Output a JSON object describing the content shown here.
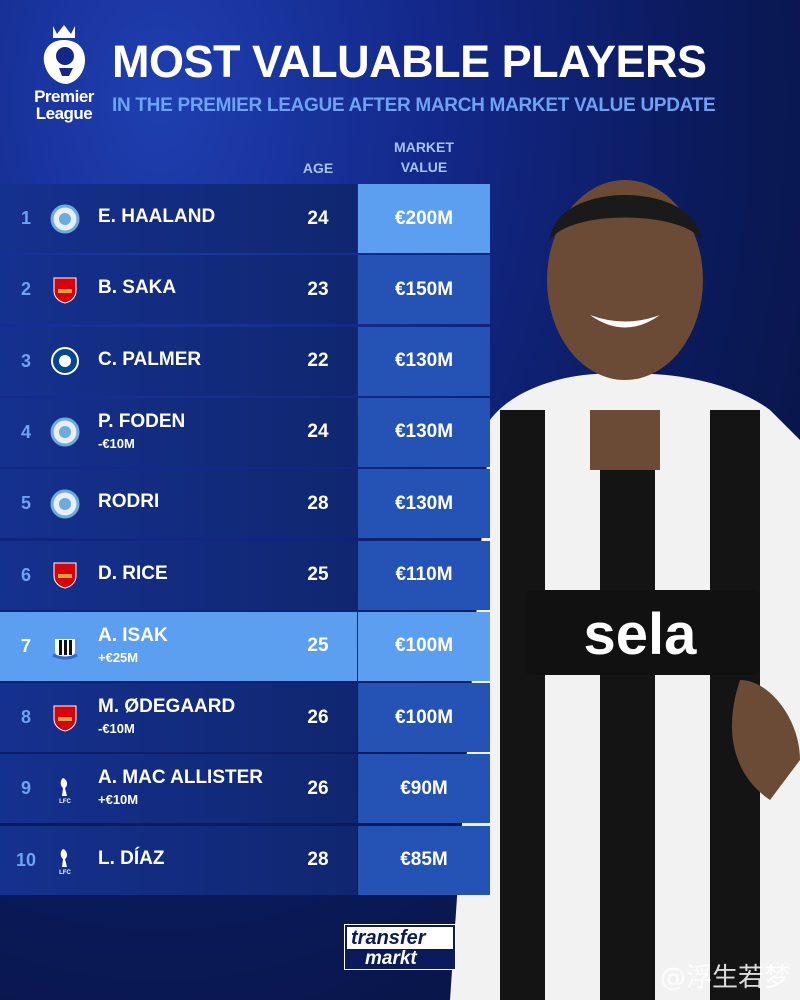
{
  "header": {
    "logo_text": [
      "Premier",
      "League"
    ],
    "title": "MOST VALUABLE PLAYERS",
    "subtitle": "IN THE PREMIER LEAGUE AFTER MARCH MARKET VALUE UPDATE"
  },
  "columns": {
    "age": "AGE",
    "market_value": [
      "MARKET",
      "VALUE"
    ]
  },
  "rows": [
    {
      "rank": "1",
      "club": "Manchester City",
      "crest": "man-city-crest",
      "name": "E. HAALAND",
      "change": "",
      "age": "24",
      "value": "€200M"
    },
    {
      "rank": "2",
      "club": "Arsenal",
      "crest": "arsenal-crest",
      "name": "B. SAKA",
      "change": "",
      "age": "23",
      "value": "€150M"
    },
    {
      "rank": "3",
      "club": "Chelsea",
      "crest": "chelsea-crest",
      "name": "C. PALMER",
      "change": "",
      "age": "22",
      "value": "€130M"
    },
    {
      "rank": "4",
      "club": "Manchester City",
      "crest": "man-city-crest",
      "name": "P. FODEN",
      "change": "-€10M",
      "age": "24",
      "value": "€130M"
    },
    {
      "rank": "5",
      "club": "Manchester City",
      "crest": "man-city-crest",
      "name": "RODRI",
      "change": "",
      "age": "28",
      "value": "€130M"
    },
    {
      "rank": "6",
      "club": "Arsenal",
      "crest": "arsenal-crest",
      "name": "D. RICE",
      "change": "",
      "age": "25",
      "value": "€110M"
    },
    {
      "rank": "7",
      "club": "Newcastle",
      "crest": "newcastle-crest",
      "name": "A. ISAK",
      "change": "+€25M",
      "age": "25",
      "value": "€100M",
      "highlight": true
    },
    {
      "rank": "8",
      "club": "Arsenal",
      "crest": "arsenal-crest",
      "name": "M. ØDEGAARD",
      "change": "-€10M",
      "age": "26",
      "value": "€100M"
    },
    {
      "rank": "9",
      "club": "Liverpool",
      "crest": "liverpool-crest",
      "name": "A. MAC ALLISTER",
      "change": "+€10M",
      "age": "26",
      "value": "€90M"
    },
    {
      "rank": "10",
      "club": "Liverpool",
      "crest": "liverpool-crest",
      "name": "L. DÍAZ",
      "change": "",
      "age": "28",
      "value": "€85M"
    }
  ],
  "jersey_sponsor": "sela",
  "brand_logo": [
    "transfer",
    "markt"
  ],
  "watermark": "@浮生若梦",
  "colors": {
    "accent": "#5c9ff0",
    "row": "#15318f",
    "value_cell": "#2552b5",
    "rank": "#6ea2f2"
  }
}
